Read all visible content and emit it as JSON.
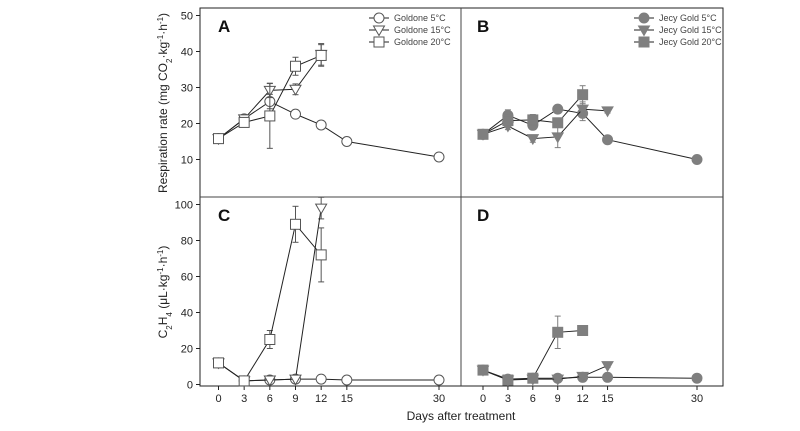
{
  "chart_data": {
    "type": "line",
    "xlabel": "Days after treatment",
    "x_ticks": [
      0,
      3,
      6,
      9,
      12,
      15,
      30
    ],
    "panels": [
      {
        "letter": "A",
        "ylabel_main": "Respiration rate (mg CO",
        "ylabel_sub": "2",
        "ylabel_tail": "·kg",
        "ylabel_sup1": "-1",
        "ylabel_mid": "·h",
        "ylabel_sup2": "-1",
        "ylabel_end": ")",
        "ylim": [
          0,
          50
        ],
        "y_ticks": [
          10,
          20,
          30,
          40,
          50
        ],
        "series": [
          {
            "name": "Goldone 5°C",
            "marker": "circle",
            "fill": "open",
            "x": [
              0,
              3,
              6,
              9,
              12,
              15,
              30
            ],
            "y": [
              15.8,
              21.3,
              26.1,
              22.6,
              19.6,
              15.0,
              10.7
            ],
            "err": [
              0.6,
              0.5,
              2.0,
              1.0,
              0.5,
              0.4,
              0.4
            ]
          },
          {
            "name": "Goldone 15°C",
            "marker": "triangle-down",
            "fill": "open",
            "x": [
              0,
              3,
              6,
              9,
              12
            ],
            "y": [
              15.8,
              21.3,
              29.2,
              29.5,
              39.2
            ],
            "err": [
              0.6,
              0.5,
              2.0,
              1.5,
              3.0
            ]
          },
          {
            "name": "Goldone 20°C",
            "marker": "square",
            "fill": "open",
            "x": [
              0,
              3,
              6,
              9,
              12
            ],
            "y": [
              15.8,
              20.3,
              22.1,
              35.9,
              38.9
            ],
            "err": [
              0.6,
              0.8,
              9.0,
              2.5,
              3.0
            ]
          }
        ],
        "legend_position": "top-right"
      },
      {
        "letter": "B",
        "ylim": [
          0,
          50
        ],
        "series": [
          {
            "name": "Jecy Gold 5°C",
            "marker": "circle",
            "fill": "solid",
            "x": [
              0,
              3,
              6,
              9,
              12,
              15,
              30
            ],
            "y": [
              17.0,
              22.3,
              19.5,
              24.0,
              22.8,
              15.5,
              10.0
            ],
            "err": [
              0.5,
              1.5,
              1.0,
              1.0,
              2.0,
              0.4,
              0.4
            ]
          },
          {
            "name": "Jecy Gold 15°C",
            "marker": "triangle-down",
            "fill": "solid",
            "x": [
              0,
              3,
              6,
              9,
              12,
              15
            ],
            "y": [
              17.0,
              19.3,
              15.8,
              16.3,
              24.0,
              23.5
            ],
            "err": [
              0.5,
              1.0,
              1.0,
              3.0,
              2.0,
              0.6
            ]
          },
          {
            "name": "Jecy Gold 20°C",
            "marker": "square",
            "fill": "solid",
            "x": [
              0,
              3,
              6,
              9,
              12
            ],
            "y": [
              17.0,
              20.8,
              21.0,
              20.2,
              28.0
            ],
            "err": [
              0.5,
              1.5,
              1.5,
              1.0,
              2.5
            ]
          }
        ],
        "legend_position": "top-right"
      },
      {
        "letter": "C",
        "ylabel_main": "C",
        "ylabel_sub": "2",
        "ylabel_tail": "H",
        "ylabel_sub2": "4",
        "ylabel_rest": " (μL·kg",
        "ylabel_sup1": "-1",
        "ylabel_mid": "·h",
        "ylabel_sup2": "-1",
        "ylabel_end": ")",
        "ylim": [
          0,
          100
        ],
        "y_ticks": [
          0,
          20,
          40,
          60,
          80,
          100
        ],
        "series": [
          {
            "name": "Goldone 5°C",
            "marker": "circle",
            "fill": "open",
            "x": [
              0,
              3,
              6,
              9,
              12,
              15,
              30
            ],
            "y": [
              12.0,
              2.0,
              2.5,
              3.0,
              3.0,
              2.5,
              2.5
            ],
            "err": [
              1.5,
              0.3,
              0.3,
              0.3,
              0.3,
              0.3,
              0.3
            ]
          },
          {
            "name": "Goldone 15°C",
            "marker": "triangle-down",
            "fill": "open",
            "x": [
              0,
              3,
              6,
              9,
              12
            ],
            "y": [
              12.0,
              2.0,
              2.5,
              3.0,
              98.0
            ],
            "err": [
              1.5,
              0.3,
              0.3,
              0.3,
              6.0
            ]
          },
          {
            "name": "Goldone 20°C",
            "marker": "square",
            "fill": "open",
            "x": [
              0,
              3,
              6,
              9,
              12
            ],
            "y": [
              12.0,
              2.0,
              25.0,
              89.0,
              72.0
            ],
            "err": [
              1.5,
              0.3,
              5.0,
              10.0,
              15.0
            ]
          }
        ]
      },
      {
        "letter": "D",
        "ylim": [
          0,
          100
        ],
        "series": [
          {
            "name": "Jecy Gold 5°C",
            "marker": "circle",
            "fill": "solid",
            "x": [
              0,
              3,
              6,
              9,
              12,
              15,
              30
            ],
            "y": [
              8.0,
              3.0,
              3.5,
              3.5,
              4.0,
              4.0,
              3.5
            ],
            "err": [
              1.0,
              0.3,
              0.3,
              0.3,
              0.3,
              0.3,
              0.3
            ]
          },
          {
            "name": "Jecy Gold 15°C",
            "marker": "triangle-down",
            "fill": "solid",
            "x": [
              0,
              3,
              6,
              9,
              12,
              15
            ],
            "y": [
              8.0,
              2.5,
              3.0,
              3.0,
              4.5,
              10.5
            ],
            "err": [
              1.0,
              0.3,
              0.3,
              0.3,
              0.3,
              1.0
            ]
          },
          {
            "name": "Jecy Gold 20°C",
            "marker": "square",
            "fill": "solid",
            "x": [
              0,
              3,
              6,
              9,
              12
            ],
            "y": [
              8.0,
              2.5,
              3.5,
              29.0,
              30.0
            ],
            "err": [
              1.0,
              0.3,
              0.3,
              9.0,
              2.0
            ]
          }
        ]
      }
    ],
    "colors": {
      "axis": "#222222",
      "open_series": "#555555",
      "solid_series": "#7f7f7f",
      "divider": "#444444"
    }
  }
}
